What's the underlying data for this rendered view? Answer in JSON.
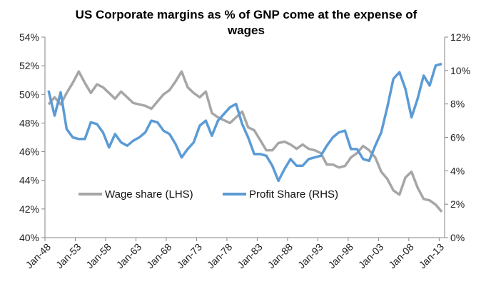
{
  "chart_data": {
    "type": "line",
    "title": "US Corporate margins as % of GNP come at the expense of wages",
    "title_lines": [
      "US Corporate margins as % of GNP come at the expense of",
      "wages"
    ],
    "xlabel": "",
    "ylabel": "",
    "x_tick_labels": [
      "Jan-48",
      "Jan-53",
      "Jan-58",
      "Jan-63",
      "Jan-68",
      "Jan-73",
      "Jan-78",
      "Jan-83",
      "Jan-88",
      "Jan-93",
      "Jan-98",
      "Jan-03",
      "Jan-08",
      "Jan-13"
    ],
    "x": [
      1948,
      1949,
      1950,
      1951,
      1952,
      1953,
      1954,
      1955,
      1956,
      1957,
      1958,
      1959,
      1960,
      1961,
      1962,
      1963,
      1964,
      1965,
      1966,
      1967,
      1968,
      1969,
      1970,
      1971,
      1972,
      1973,
      1974,
      1975,
      1976,
      1977,
      1978,
      1979,
      1980,
      1981,
      1982,
      1983,
      1984,
      1985,
      1986,
      1987,
      1988,
      1989,
      1990,
      1991,
      1992,
      1993,
      1994,
      1995,
      1996,
      1997,
      1998,
      1999,
      2000,
      2001,
      2002,
      2003,
      2004,
      2005,
      2006,
      2007,
      2008,
      2009,
      2010,
      2011,
      2012,
      2013
    ],
    "y_left": {
      "range": [
        40,
        54
      ],
      "ticks": [
        "40%",
        "42%",
        "44%",
        "46%",
        "48%",
        "50%",
        "52%",
        "54%"
      ],
      "tick_values": [
        40,
        42,
        44,
        46,
        48,
        50,
        52,
        54
      ]
    },
    "y_right": {
      "range": [
        0,
        12
      ],
      "ticks": [
        "0%",
        "2%",
        "4%",
        "6%",
        "8%",
        "10%",
        "12%"
      ],
      "tick_values": [
        0,
        2,
        4,
        6,
        8,
        10,
        12
      ]
    },
    "grid": false,
    "legend_placement": "bottom-center inside plot",
    "series": [
      {
        "name": "Wage share (LHS)",
        "axis": "left",
        "color": "#a6a6a6",
        "values": [
          49.3,
          49.8,
          49.3,
          50.1,
          50.8,
          51.6,
          50.8,
          50.1,
          50.7,
          50.5,
          50.1,
          49.7,
          50.2,
          49.8,
          49.4,
          49.3,
          49.2,
          49.0,
          49.5,
          50.0,
          50.3,
          50.9,
          51.6,
          50.5,
          50.1,
          49.8,
          50.2,
          48.7,
          48.4,
          48.2,
          48.0,
          48.4,
          48.8,
          47.7,
          47.5,
          46.8,
          46.1,
          46.1,
          46.6,
          46.7,
          46.5,
          46.2,
          46.5,
          46.2,
          46.1,
          45.9,
          45.1,
          45.1,
          44.9,
          45.0,
          45.6,
          45.9,
          46.4,
          46.1,
          45.6,
          44.6,
          44.1,
          43.3,
          43.0,
          44.2,
          44.6,
          43.5,
          42.7,
          42.6,
          42.3,
          41.8
        ]
      },
      {
        "name": "Profit Share (RHS)",
        "axis": "right",
        "color": "#5b9bd5",
        "values": [
          8.8,
          7.3,
          8.7,
          6.5,
          6.0,
          5.9,
          5.9,
          6.9,
          6.8,
          6.3,
          5.4,
          6.2,
          5.7,
          5.5,
          5.8,
          6.0,
          6.3,
          7.0,
          6.9,
          6.4,
          6.2,
          5.6,
          4.8,
          5.3,
          5.7,
          6.7,
          7.0,
          6.1,
          7.0,
          7.4,
          7.8,
          8.0,
          6.8,
          6.0,
          5.0,
          5.0,
          4.9,
          4.3,
          3.4,
          4.1,
          4.7,
          4.3,
          4.3,
          4.7,
          4.8,
          4.9,
          5.5,
          6.0,
          6.3,
          6.4,
          5.3,
          5.3,
          4.7,
          4.6,
          5.5,
          6.3,
          7.8,
          9.5,
          9.9,
          8.9,
          7.2,
          8.3,
          9.7,
          9.1,
          10.3,
          10.4
        ]
      }
    ]
  }
}
